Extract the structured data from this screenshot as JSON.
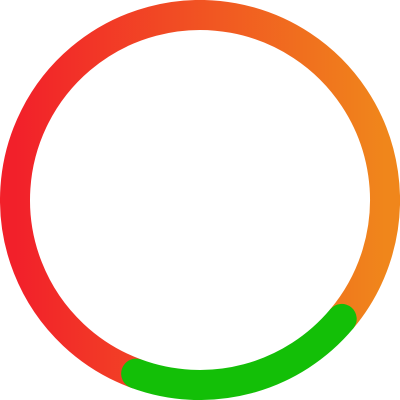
{
  "ring": {
    "progress_fraction": 0.3,
    "colors": {
      "progress": "#13bf07",
      "remaining_start": "#f0861b",
      "remaining_end": "#f2202a"
    }
  }
}
